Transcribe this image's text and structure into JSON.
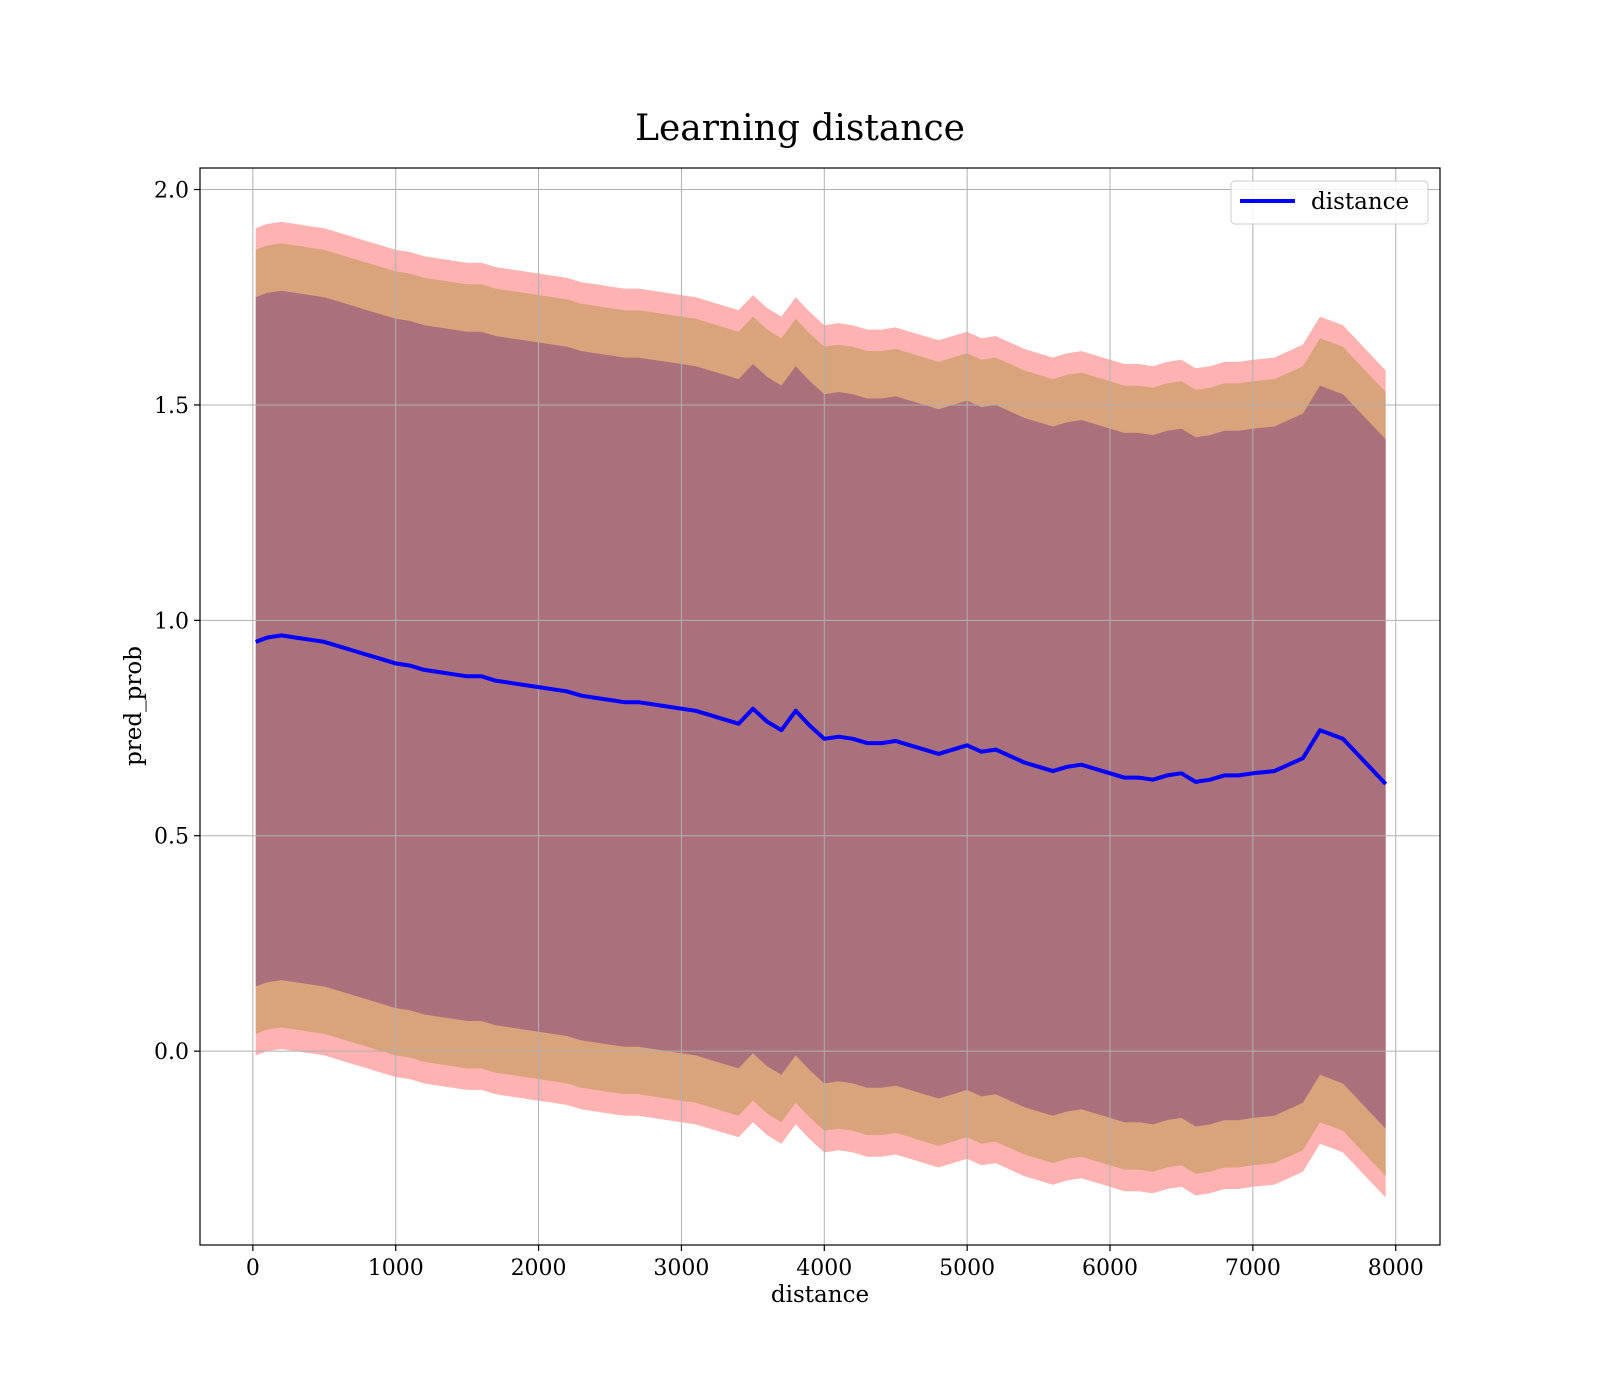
{
  "chart_data": {
    "type": "line",
    "title": "Learning distance",
    "xlabel": "distance",
    "ylabel": "pred_prob",
    "xlim": [
      -370,
      8310
    ],
    "ylim": [
      -0.45,
      2.05
    ],
    "grid": true,
    "legend_position": "top-right",
    "xticks": [
      0,
      1000,
      2000,
      3000,
      4000,
      5000,
      6000,
      7000,
      8000
    ],
    "xtick_labels": [
      "0",
      "1000",
      "2000",
      "3000",
      "4000",
      "5000",
      "6000",
      "7000",
      "8000"
    ],
    "yticks": [
      0.0,
      0.5,
      1.0,
      1.5,
      2.0
    ],
    "ytick_labels": [
      "0.0",
      "0.5",
      "1.0",
      "1.5",
      "2.0"
    ],
    "colors": {
      "line": "#0000ff",
      "band_outer": "#ff0000",
      "band_middle": "#808000",
      "band_inner": "#400080"
    },
    "series": [
      {
        "name": "distance",
        "x": [
          20,
          100,
          200,
          300,
          400,
          500,
          600,
          700,
          800,
          900,
          1000,
          1100,
          1200,
          1300,
          1400,
          1500,
          1600,
          1700,
          1800,
          1900,
          2000,
          2100,
          2200,
          2300,
          2400,
          2500,
          2600,
          2700,
          2800,
          2900,
          3000,
          3100,
          3200,
          3300,
          3400,
          3500,
          3600,
          3700,
          3800,
          3900,
          4000,
          4100,
          4200,
          4300,
          4400,
          4500,
          4600,
          4700,
          4800,
          4900,
          5000,
          5100,
          5200,
          5300,
          5400,
          5500,
          5600,
          5700,
          5800,
          5900,
          6000,
          6100,
          6200,
          6300,
          6400,
          6500,
          6600,
          6700,
          6800,
          6900,
          7000,
          7150,
          7350,
          7470,
          7630,
          7930
        ],
        "y": [
          0.95,
          0.96,
          0.965,
          0.96,
          0.955,
          0.95,
          0.94,
          0.93,
          0.92,
          0.91,
          0.9,
          0.895,
          0.885,
          0.88,
          0.875,
          0.87,
          0.87,
          0.86,
          0.855,
          0.85,
          0.845,
          0.84,
          0.835,
          0.825,
          0.82,
          0.815,
          0.81,
          0.81,
          0.805,
          0.8,
          0.795,
          0.79,
          0.78,
          0.77,
          0.76,
          0.795,
          0.765,
          0.745,
          0.79,
          0.755,
          0.725,
          0.73,
          0.725,
          0.715,
          0.715,
          0.72,
          0.71,
          0.7,
          0.69,
          0.7,
          0.71,
          0.695,
          0.7,
          0.685,
          0.67,
          0.66,
          0.65,
          0.66,
          0.665,
          0.655,
          0.645,
          0.635,
          0.635,
          0.63,
          0.64,
          0.645,
          0.625,
          0.63,
          0.64,
          0.64,
          0.645,
          0.65,
          0.68,
          0.745,
          0.725,
          0.62
        ]
      }
    ],
    "bands": [
      {
        "level": "outer",
        "offset": [
          0.96,
          0.96,
          0.96,
          0.96,
          0.96,
          0.96,
          0.96,
          0.96,
          0.96,
          0.96,
          0.96,
          0.96,
          0.96,
          0.96,
          0.96,
          0.96,
          0.96,
          0.96,
          0.96,
          0.96,
          0.96,
          0.96,
          0.96,
          0.96,
          0.96,
          0.96,
          0.96,
          0.96,
          0.96,
          0.96,
          0.96,
          0.96,
          0.96,
          0.96,
          0.96,
          0.96,
          0.96,
          0.96,
          0.96,
          0.96,
          0.96,
          0.96,
          0.96,
          0.96,
          0.96,
          0.96,
          0.96,
          0.96,
          0.96,
          0.96,
          0.96,
          0.96,
          0.96,
          0.96,
          0.96,
          0.96,
          0.96,
          0.96,
          0.96,
          0.96,
          0.96,
          0.96,
          0.96,
          0.96,
          0.96,
          0.96,
          0.96,
          0.96,
          0.96,
          0.96,
          0.96,
          0.96,
          0.96,
          0.96,
          0.96,
          0.96
        ]
      },
      {
        "level": "middle",
        "offset": [
          0.91,
          0.91,
          0.91,
          0.91,
          0.91,
          0.91,
          0.91,
          0.91,
          0.91,
          0.91,
          0.91,
          0.91,
          0.91,
          0.91,
          0.91,
          0.91,
          0.91,
          0.91,
          0.91,
          0.91,
          0.91,
          0.91,
          0.91,
          0.91,
          0.91,
          0.91,
          0.91,
          0.91,
          0.91,
          0.91,
          0.91,
          0.91,
          0.91,
          0.91,
          0.91,
          0.91,
          0.91,
          0.91,
          0.91,
          0.91,
          0.91,
          0.91,
          0.91,
          0.91,
          0.91,
          0.91,
          0.91,
          0.91,
          0.91,
          0.91,
          0.91,
          0.91,
          0.91,
          0.91,
          0.91,
          0.91,
          0.91,
          0.91,
          0.91,
          0.91,
          0.91,
          0.91,
          0.91,
          0.91,
          0.91,
          0.91,
          0.91,
          0.91,
          0.91,
          0.91,
          0.91,
          0.91,
          0.91,
          0.91,
          0.91,
          0.91
        ]
      },
      {
        "level": "inner",
        "offset": [
          0.8,
          0.8,
          0.8,
          0.8,
          0.8,
          0.8,
          0.8,
          0.8,
          0.8,
          0.8,
          0.8,
          0.8,
          0.8,
          0.8,
          0.8,
          0.8,
          0.8,
          0.8,
          0.8,
          0.8,
          0.8,
          0.8,
          0.8,
          0.8,
          0.8,
          0.8,
          0.8,
          0.8,
          0.8,
          0.8,
          0.8,
          0.8,
          0.8,
          0.8,
          0.8,
          0.8,
          0.8,
          0.8,
          0.8,
          0.8,
          0.8,
          0.8,
          0.8,
          0.8,
          0.8,
          0.8,
          0.8,
          0.8,
          0.8,
          0.8,
          0.8,
          0.8,
          0.8,
          0.8,
          0.8,
          0.8,
          0.8,
          0.8,
          0.8,
          0.8,
          0.8,
          0.8,
          0.8,
          0.8,
          0.8,
          0.8,
          0.8,
          0.8,
          0.8,
          0.8,
          0.8,
          0.8,
          0.8,
          0.8,
          0.8,
          0.8
        ]
      }
    ]
  }
}
